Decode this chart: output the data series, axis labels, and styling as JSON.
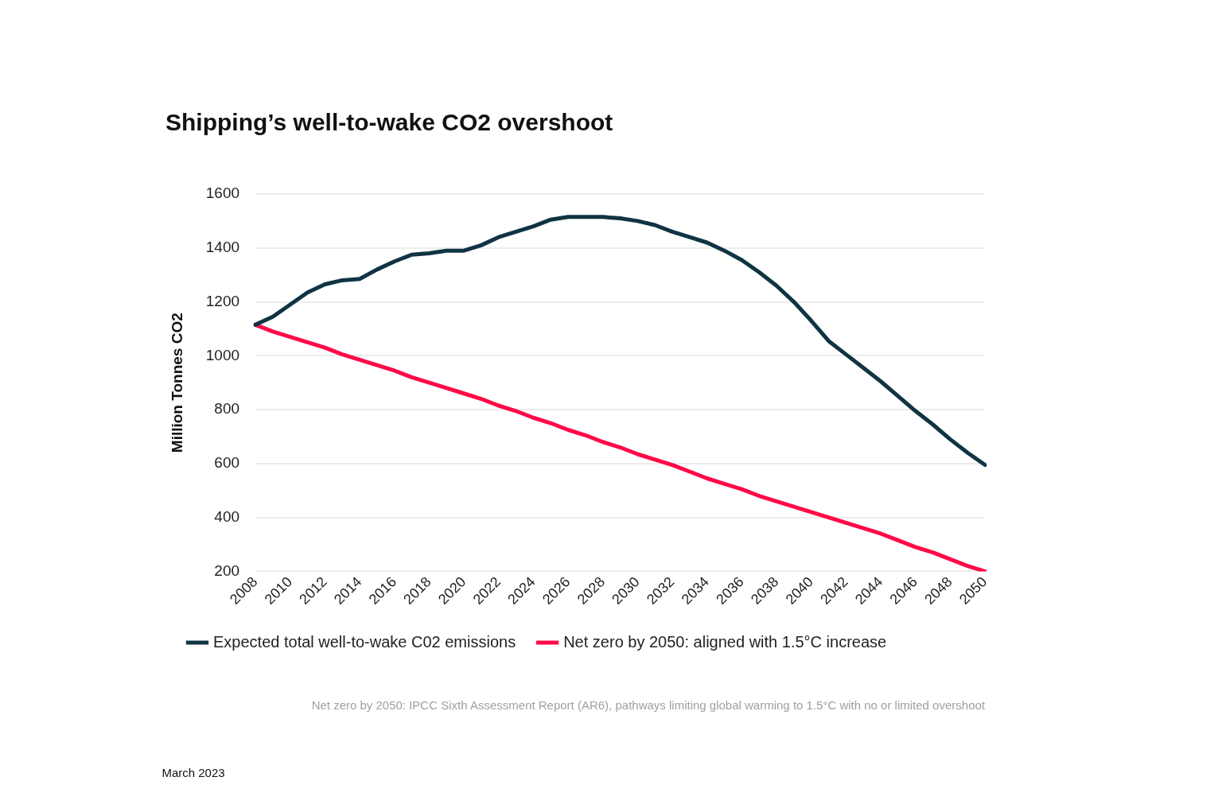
{
  "chart_data": {
    "type": "line",
    "title": "Shipping’s well-to-wake CO2 overshoot",
    "ylabel": "Million Tonnes CO2",
    "categories": [
      "2008",
      null,
      "2010",
      null,
      "2012",
      null,
      "2014",
      null,
      "2016",
      null,
      "2018",
      null,
      "2020",
      null,
      "2022",
      null,
      "2024",
      null,
      "2026",
      null,
      "2028",
      null,
      "2030",
      null,
      "2032",
      null,
      "2034",
      null,
      "2036",
      null,
      "2038",
      null,
      "2040",
      null,
      "2042",
      null,
      "2044",
      null,
      "2046",
      null,
      "2048",
      null,
      "2050"
    ],
    "series": [
      {
        "name": "Expected total well-to-wake C02 emissions",
        "color": "#0f3443",
        "values": [
          1115,
          1145,
          1190,
          1235,
          1265,
          1280,
          1285,
          1320,
          1350,
          1375,
          1380,
          1390,
          1390,
          1410,
          1440,
          1460,
          1480,
          1505,
          1515,
          1515,
          1515,
          1510,
          1500,
          1485,
          1460,
          1440,
          1420,
          1390,
          1355,
          1310,
          1260,
          1200,
          1130,
          1055,
          1005,
          955,
          905,
          850,
          795,
          745,
          690,
          640,
          595
        ]
      },
      {
        "name": "Net zero by 2050: aligned with 1.5°C increase",
        "color": "#ff0a47",
        "values": [
          1115,
          1090,
          1070,
          1050,
          1030,
          1005,
          985,
          965,
          945,
          920,
          900,
          880,
          860,
          840,
          815,
          795,
          770,
          750,
          725,
          705,
          680,
          660,
          635,
          615,
          595,
          570,
          545,
          525,
          505,
          480,
          460,
          440,
          420,
          400,
          380,
          360,
          340,
          315,
          290,
          270,
          245,
          220,
          200
        ]
      }
    ],
    "ylim": [
      200,
      1600
    ],
    "yticks": [
      200,
      400,
      600,
      800,
      1000,
      1200,
      1400,
      1600
    ],
    "grid": "y",
    "legend": "bottom",
    "marker": "none",
    "line_style": "solid",
    "annotations": [
      "Net zero by 2050: IPCC Sixth Assessment Report (AR6), pathways limiting global warming to 1.5°C with no or limited overshoot",
      "March 2023"
    ]
  }
}
